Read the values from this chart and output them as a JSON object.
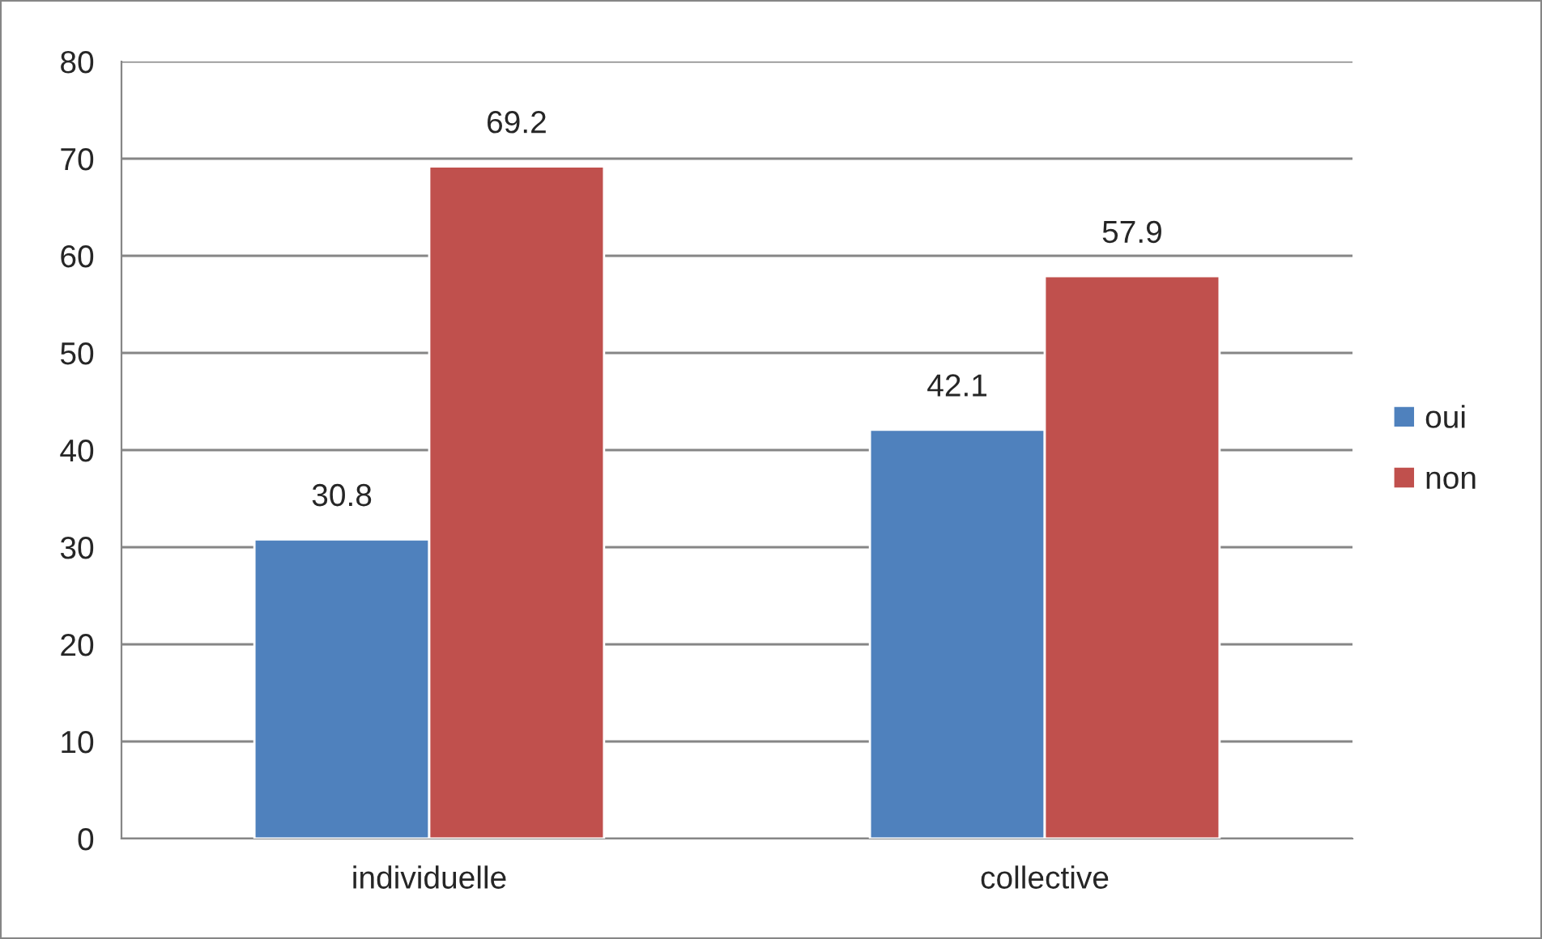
{
  "chart_data": {
    "type": "bar",
    "categories": [
      "individuelle",
      "collective"
    ],
    "series": [
      {
        "name": "oui",
        "color": "#4f81bd",
        "values": [
          30.8,
          42.1
        ]
      },
      {
        "name": "non",
        "color": "#c0504d",
        "values": [
          69.2,
          57.9
        ]
      }
    ],
    "ylim": [
      0,
      80
    ],
    "yticks": [
      0,
      10,
      20,
      30,
      40,
      50,
      60,
      70,
      80
    ],
    "grid": "y",
    "legend": "right",
    "data_labels": true
  }
}
